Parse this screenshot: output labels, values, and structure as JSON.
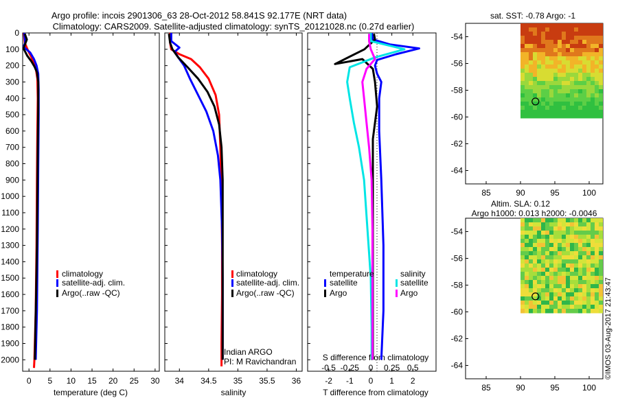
{
  "header": {
    "line1": "Argo profile: incois 2901306_63 28-Oct-2012 58.841S 92.177E (NRT data)",
    "line2": "Climatology: CARS2009. Satellite-adjusted climatology: synTS_20121028.nc (0.27d earlier)"
  },
  "colors": {
    "climatology": "#ff0000",
    "satellite": "#0000ff",
    "argo": "#000000",
    "sal_satellite": "#00e5e5",
    "sal_argo": "#ff00ff"
  },
  "depth_ticks": [
    "0",
    "100",
    "200",
    "300",
    "400",
    "500",
    "600",
    "700",
    "800",
    "900",
    "1000",
    "1100",
    "1200",
    "1300",
    "1400",
    "1500",
    "1600",
    "1700",
    "1800",
    "1900",
    "2000"
  ],
  "chart_data": [
    {
      "type": "line",
      "name": "temperature-profile",
      "xlabel": "temperature (deg C)",
      "ylabel": "depth",
      "xlim": [
        -1.5,
        31
      ],
      "ylim": [
        2070,
        0
      ],
      "xticks": [
        "0",
        "5",
        "10",
        "15",
        "20",
        "25",
        "30"
      ],
      "legend": [
        "climatology",
        "satellite-adj. clim.",
        "Argo(..raw -QC)"
      ],
      "legend_position": "bottom-left",
      "series": [
        {
          "name": "climatology",
          "color": "#ff0000",
          "points": [
            [
              -1.2,
              0
            ],
            [
              -1.0,
              60
            ],
            [
              -0.2,
              110
            ],
            [
              0.6,
              150
            ],
            [
              1.2,
              190
            ],
            [
              1.7,
              230
            ],
            [
              2.0,
              280
            ],
            [
              2.1,
              400
            ],
            [
              2.0,
              600
            ],
            [
              1.9,
              900
            ],
            [
              1.8,
              1300
            ],
            [
              1.6,
              1700
            ],
            [
              1.3,
              2000
            ],
            [
              1.2,
              2050
            ]
          ]
        },
        {
          "name": "satellite-adj. clim.",
          "color": "#0000ff",
          "points": [
            [
              -1.1,
              0
            ],
            [
              -0.9,
              60
            ],
            [
              -1.3,
              85
            ],
            [
              0.3,
              120
            ],
            [
              1.2,
              160
            ],
            [
              1.8,
              200
            ],
            [
              2.2,
              250
            ],
            [
              2.3,
              350
            ],
            [
              2.3,
              500
            ],
            [
              2.2,
              800
            ],
            [
              2.1,
              1200
            ],
            [
              1.9,
              1700
            ],
            [
              1.6,
              2000
            ]
          ]
        },
        {
          "name": "Argo(..raw -QC)",
          "color": "#000000",
          "points": [
            [
              -1.0,
              5
            ],
            [
              -0.5,
              40
            ],
            [
              -1.3,
              95
            ],
            [
              -0.4,
              140
            ],
            [
              0.6,
              175
            ],
            [
              1.3,
              205
            ],
            [
              1.9,
              240
            ],
            [
              2.2,
              300
            ],
            [
              2.2,
              450
            ],
            [
              2.1,
              700
            ],
            [
              2.0,
              1000
            ],
            [
              1.9,
              1300
            ],
            [
              1.7,
              1600
            ],
            [
              1.5,
              1850
            ],
            [
              1.4,
              2000
            ]
          ]
        }
      ]
    },
    {
      "type": "line",
      "name": "salinity-profile",
      "xlabel": "salinity",
      "ylabel": "depth",
      "xlim": [
        33.75,
        36.1
      ],
      "ylim": [
        2070,
        0
      ],
      "xticks": [
        "34",
        "34.5",
        "35",
        "35.5",
        "36"
      ],
      "legend": [
        "climatology",
        "satellite-adj. clim.",
        "Argo(..raw -QC)"
      ],
      "legend_position": "bottom-left",
      "annotations": [
        "Indian ARGO",
        "PI: M Ravichandran"
      ],
      "series": [
        {
          "name": "climatology",
          "color": "#ff0000",
          "points": [
            [
              33.84,
              0
            ],
            [
              33.84,
              60
            ],
            [
              33.86,
              100
            ],
            [
              34.0,
              130
            ],
            [
              34.2,
              160
            ],
            [
              34.35,
              210
            ],
            [
              34.5,
              280
            ],
            [
              34.62,
              380
            ],
            [
              34.68,
              500
            ],
            [
              34.7,
              700
            ],
            [
              34.72,
              1000
            ],
            [
              34.73,
              1300
            ],
            [
              34.73,
              1600
            ],
            [
              34.72,
              1900
            ],
            [
              34.72,
              2040
            ]
          ]
        },
        {
          "name": "satellite-adj. clim.",
          "color": "#0000ff",
          "points": [
            [
              33.86,
              0
            ],
            [
              33.86,
              50
            ],
            [
              34.0,
              90
            ],
            [
              33.92,
              115
            ],
            [
              33.98,
              150
            ],
            [
              34.08,
              200
            ],
            [
              34.18,
              280
            ],
            [
              34.32,
              380
            ],
            [
              34.46,
              480
            ],
            [
              34.58,
              600
            ],
            [
              34.66,
              750
            ],
            [
              34.7,
              900
            ],
            [
              34.73,
              1200
            ],
            [
              34.74,
              1500
            ],
            [
              34.74,
              1800
            ],
            [
              34.74,
              2000
            ]
          ]
        },
        {
          "name": "Argo(..raw -QC)",
          "color": "#000000",
          "points": [
            [
              33.82,
              5
            ],
            [
              33.84,
              60
            ],
            [
              33.88,
              100
            ],
            [
              33.98,
              150
            ],
            [
              34.14,
              210
            ],
            [
              34.32,
              280
            ],
            [
              34.48,
              360
            ],
            [
              34.6,
              450
            ],
            [
              34.68,
              560
            ],
            [
              34.72,
              700
            ],
            [
              34.74,
              900
            ],
            [
              34.74,
              1200
            ],
            [
              34.74,
              1600
            ],
            [
              34.74,
              2000
            ]
          ]
        }
      ]
    },
    {
      "type": "line",
      "name": "difference-profile",
      "xlabel": "T difference from climatology",
      "xlabel_top": "S difference from climatology",
      "ylabel": "depth",
      "xlim": [
        -3,
        3.1
      ],
      "xlim_salinity": [
        -0.75,
        0.775
      ],
      "ylim": [
        2070,
        0
      ],
      "xticks": [
        "-2",
        "-1",
        "0",
        "1",
        "2"
      ],
      "xticks_salinity": [
        "-0.5",
        "-0.25",
        "0",
        "0.25",
        "0.5"
      ],
      "legend_temperature_title": "temperature",
      "legend_salinity_title": "salinity",
      "legend_temperature": [
        "satellite",
        "Argo"
      ],
      "legend_salinity": [
        "satellite",
        "Argo"
      ],
      "series": [
        {
          "name": "temperature satellite",
          "color": "#0000ff",
          "points": [
            [
              0.05,
              0
            ],
            [
              0.1,
              40
            ],
            [
              0.9,
              70
            ],
            [
              2.3,
              95
            ],
            [
              1.2,
              130
            ],
            [
              0.3,
              165
            ],
            [
              0.2,
              200
            ],
            [
              0.3,
              250
            ],
            [
              0.5,
              300
            ],
            [
              0.4,
              400
            ],
            [
              0.4,
              600
            ],
            [
              0.5,
              900
            ],
            [
              0.6,
              1300
            ],
            [
              0.6,
              1700
            ],
            [
              0.5,
              2000
            ]
          ]
        },
        {
          "name": "temperature Argo",
          "color": "#000000",
          "points": [
            [
              0.15,
              5
            ],
            [
              0.2,
              40
            ],
            [
              -0.3,
              100
            ],
            [
              -1.7,
              190
            ],
            [
              -0.4,
              160
            ],
            [
              0.1,
              220
            ],
            [
              0.2,
              300
            ],
            [
              0.3,
              450
            ],
            [
              0.1,
              650
            ],
            [
              0.1,
              1000
            ],
            [
              0.1,
              1400
            ],
            [
              0.1,
              1800
            ],
            [
              0.1,
              2000
            ]
          ]
        },
        {
          "name": "salinity satellite",
          "color": "#00e5e5",
          "points": [
            [
              0,
              0
            ],
            [
              0.0,
              50
            ],
            [
              0.4,
              100
            ],
            [
              0.05,
              150
            ],
            [
              -0.25,
              210
            ],
            [
              -0.28,
              300
            ],
            [
              -0.25,
              400
            ],
            [
              -0.2,
              550
            ],
            [
              -0.14,
              700
            ],
            [
              -0.08,
              900
            ],
            [
              -0.04,
              1200
            ],
            [
              0.0,
              1500
            ],
            [
              0.01,
              1800
            ],
            [
              0.01,
              2000
            ]
          ]
        },
        {
          "name": "salinity Argo",
          "color": "#ff00ff",
          "points": [
            [
              -0.02,
              5
            ],
            [
              -0.02,
              50
            ],
            [
              0.0,
              100
            ],
            [
              0.05,
              160
            ],
            [
              -0.05,
              220
            ],
            [
              -0.1,
              300
            ],
            [
              -0.08,
              400
            ],
            [
              -0.05,
              550
            ],
            [
              -0.02,
              700
            ],
            [
              0.01,
              900
            ],
            [
              0.02,
              1200
            ],
            [
              0.02,
              1500
            ],
            [
              0.02,
              1800
            ],
            [
              0.02,
              2000
            ]
          ]
        }
      ]
    },
    {
      "type": "heatmap",
      "name": "sst-map",
      "title": "sat. SST: -0.78  Argo: -1",
      "xlim": [
        82,
        102
      ],
      "ylim": [
        -65,
        -53
      ],
      "xticks": [
        "85",
        "90",
        "95",
        "100"
      ],
      "yticks": [
        "-54",
        "-56",
        "-58",
        "-60",
        "-62",
        "-64"
      ],
      "argo_position": [
        92.177,
        -58.841
      ],
      "data_extent": {
        "lon": [
          90,
          102
        ],
        "lat": [
          -60,
          -53
        ]
      }
    },
    {
      "type": "heatmap",
      "name": "sla-map",
      "title_line1": "Altim. SLA: 0.12",
      "title_line2": "Argo h1000: 0.013 h2000: -0.0046",
      "xlim": [
        82,
        102
      ],
      "ylim": [
        -65,
        -53
      ],
      "xticks": [
        "85",
        "90",
        "95",
        "100"
      ],
      "yticks": [
        "-54",
        "-56",
        "-58",
        "-60",
        "-62",
        "-64"
      ],
      "argo_position": [
        92.177,
        -58.841
      ],
      "data_extent": {
        "lon": [
          90,
          102
        ],
        "lat": [
          -60,
          -53
        ]
      }
    }
  ],
  "watermark": "©IMOS 03-Aug-2017 21:43:47"
}
